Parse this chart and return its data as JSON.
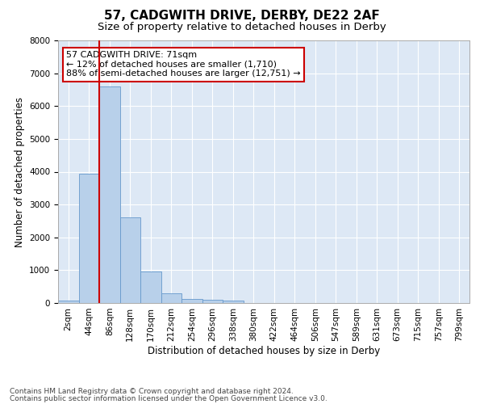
{
  "title": "57, CADGWITH DRIVE, DERBY, DE22 2AF",
  "subtitle": "Size of property relative to detached houses in Derby",
  "xlabel": "Distribution of detached houses by size in Derby",
  "ylabel": "Number of detached properties",
  "bar_values": [
    75,
    3950,
    6600,
    2600,
    950,
    300,
    120,
    110,
    80,
    0,
    0,
    0,
    0,
    0,
    0,
    0,
    0,
    0,
    0,
    0
  ],
  "bin_labels": [
    "2sqm",
    "44sqm",
    "86sqm",
    "128sqm",
    "170sqm",
    "212sqm",
    "254sqm",
    "296sqm",
    "338sqm",
    "380sqm",
    "422sqm",
    "464sqm",
    "506sqm",
    "547sqm",
    "589sqm",
    "631sqm",
    "673sqm",
    "715sqm",
    "757sqm",
    "799sqm"
  ],
  "bar_color": "#b8d0ea",
  "bar_edge_color": "#6699cc",
  "bg_color": "#dde8f5",
  "grid_color": "#ffffff",
  "vline_color": "#cc0000",
  "annotation_box_text": "57 CADGWITH DRIVE: 71sqm\n← 12% of detached houses are smaller (1,710)\n88% of semi-detached houses are larger (12,751) →",
  "annotation_box_color": "#cc0000",
  "ylim": [
    0,
    8000
  ],
  "yticks": [
    0,
    1000,
    2000,
    3000,
    4000,
    5000,
    6000,
    7000,
    8000
  ],
  "footer_line1": "Contains HM Land Registry data © Crown copyright and database right 2024.",
  "footer_line2": "Contains public sector information licensed under the Open Government Licence v3.0.",
  "title_fontsize": 11,
  "subtitle_fontsize": 9.5,
  "axis_label_fontsize": 8.5,
  "tick_fontsize": 7.5,
  "annotation_fontsize": 8,
  "footer_fontsize": 6.5
}
